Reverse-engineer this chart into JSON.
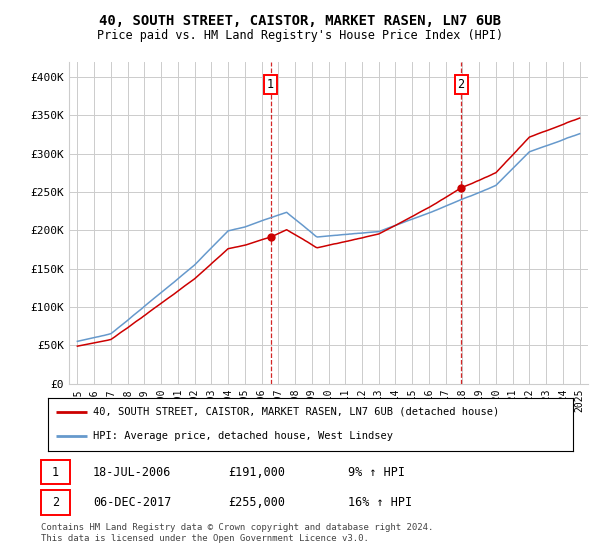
{
  "title": "40, SOUTH STREET, CAISTOR, MARKET RASEN, LN7 6UB",
  "subtitle": "Price paid vs. HM Land Registry's House Price Index (HPI)",
  "legend_label_red": "40, SOUTH STREET, CAISTOR, MARKET RASEN, LN7 6UB (detached house)",
  "legend_label_blue": "HPI: Average price, detached house, West Lindsey",
  "sale1_label": "1",
  "sale1_date": "18-JUL-2006",
  "sale1_price": "£191,000",
  "sale1_hpi": "9% ↑ HPI",
  "sale1_year": 2006.54,
  "sale1_value": 191000,
  "sale2_label": "2",
  "sale2_date": "06-DEC-2017",
  "sale2_price": "£255,000",
  "sale2_hpi": "16% ↑ HPI",
  "sale2_year": 2017.92,
  "sale2_value": 255000,
  "footer": "Contains HM Land Registry data © Crown copyright and database right 2024.\nThis data is licensed under the Open Government Licence v3.0.",
  "color_red": "#cc0000",
  "color_blue": "#6699cc",
  "ylim": [
    0,
    420000
  ],
  "yticks": [
    0,
    50000,
    100000,
    150000,
    200000,
    250000,
    300000,
    350000,
    400000
  ],
  "ytick_labels": [
    "£0",
    "£50K",
    "£100K",
    "£150K",
    "£200K",
    "£250K",
    "£300K",
    "£350K",
    "£400K"
  ],
  "background_color": "#ffffff",
  "grid_color": "#cccccc",
  "xstart": 1995,
  "xend": 2025
}
